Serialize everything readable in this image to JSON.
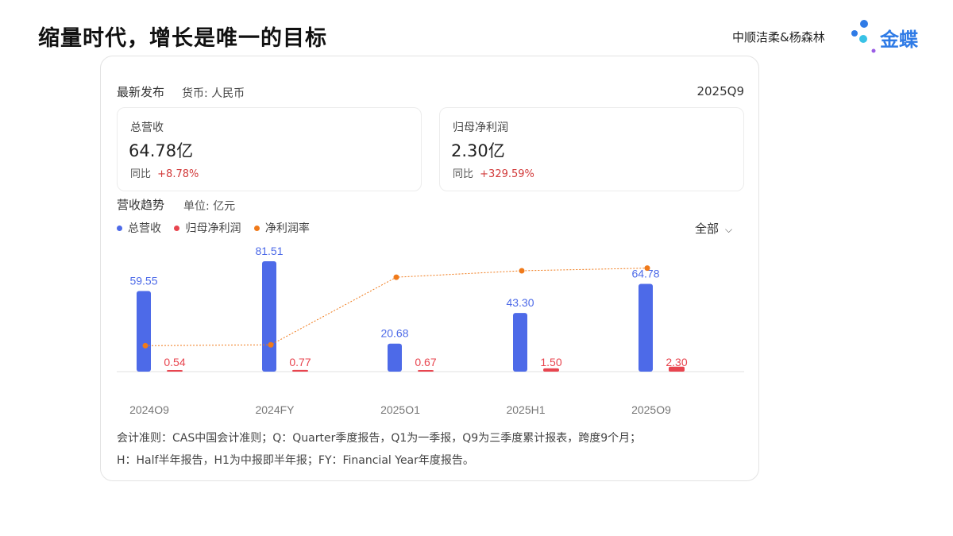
{
  "slide": {
    "title": "缩量时代，增长是唯一的目标",
    "author": "中顺洁柔&杨森林",
    "brand": "金蝶"
  },
  "card": {
    "latest_label": "最新发布",
    "currency": "货币: 人民币",
    "period": "2025Q9",
    "revenue": {
      "label": "总营收",
      "value": "64.78亿",
      "yoy_label": "同比",
      "yoy": "+8.78%"
    },
    "profit": {
      "label": "归母净利润",
      "value": "2.30亿",
      "yoy_label": "同比",
      "yoy": "+329.59%"
    },
    "trend_title": "营收趋势",
    "trend_unit": "单位: 亿元",
    "legend": [
      {
        "label": "总营收",
        "color": "#4d6ae8"
      },
      {
        "label": "归母净利润",
        "color": "#e8454f"
      },
      {
        "label": "净利润率",
        "color": "#f07a1a"
      }
    ],
    "filter": "全部",
    "note_line1": "会计准则：CAS中国会计准则；Q：Quarter季度报告，Q1为一季报，Q9为三季度累计报表，跨度9个月；",
    "note_line2": "H：Half半年报告，H1为中报即半年报；FY：Financial Year年度报告。"
  },
  "chart_data": {
    "type": "bar",
    "categories": [
      "2024Q9",
      "2024FY",
      "2025Q1",
      "2025H1",
      "2025Q9"
    ],
    "series": [
      {
        "name": "总营收",
        "values": [
          59.55,
          81.51,
          20.68,
          43.3,
          64.78
        ],
        "color": "#4d6ae8"
      },
      {
        "name": "归母净利润",
        "values": [
          0.54,
          0.77,
          0.67,
          1.5,
          2.3
        ],
        "color": "#e8454f"
      },
      {
        "name": "净利润率",
        "type": "line",
        "values": [
          0.91,
          0.94,
          3.24,
          3.46,
          3.55
        ],
        "color": "#f07a1a"
      }
    ],
    "revenue_labels": [
      "59.55",
      "81.51",
      "20.68",
      "43.30",
      "64.78"
    ],
    "profit_labels": [
      "0.54",
      "0.77",
      "0.67",
      "1.50",
      "2.30"
    ],
    "ylim": [
      0,
      81.51
    ],
    "grid": false
  }
}
